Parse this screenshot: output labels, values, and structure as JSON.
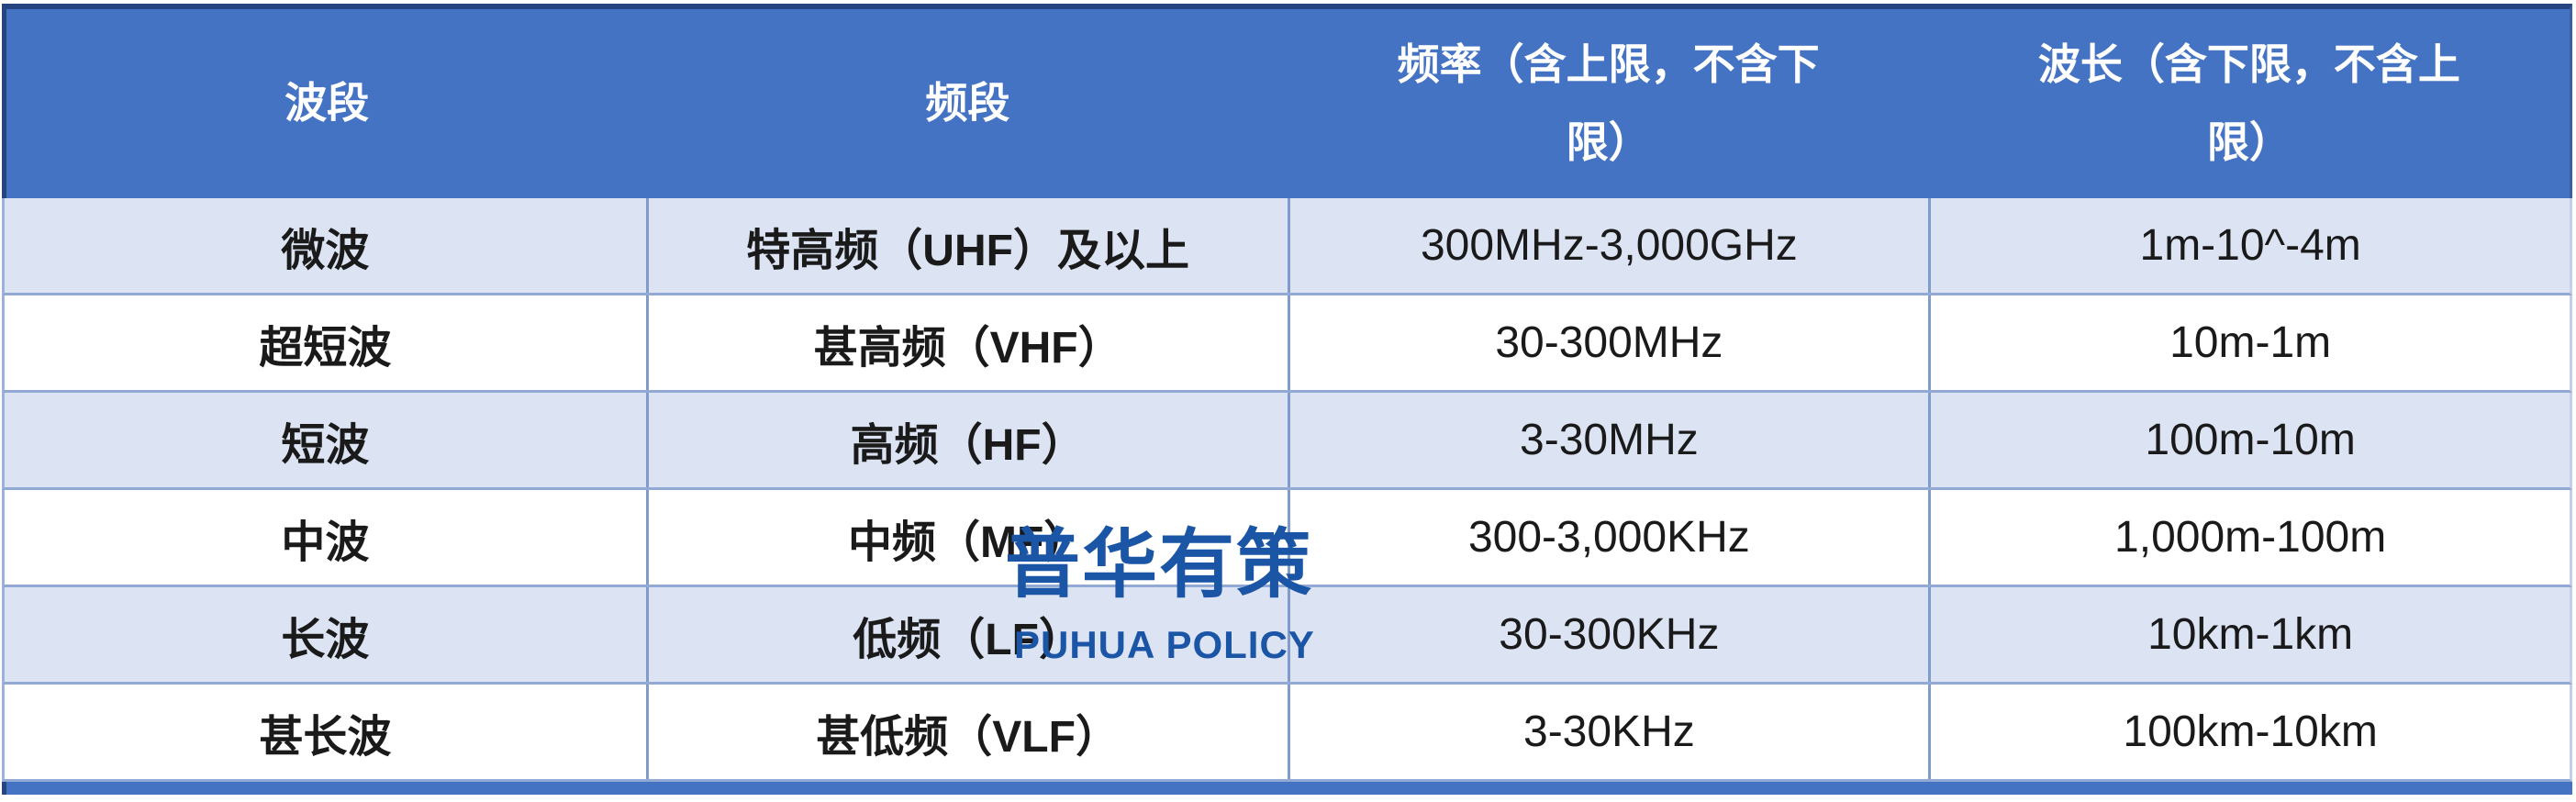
{
  "table": {
    "columns": [
      {
        "label": "波段"
      },
      {
        "label": "频段"
      },
      {
        "label": "频率（含上限，不含下\n限）"
      },
      {
        "label": "波长（含下限，不含上\n限）"
      }
    ],
    "rows": [
      {
        "band": "微波",
        "freq_band": "特高频（UHF）及以上",
        "freq_range": "300MHz-3,000GHz",
        "wavelength": "1m-10^-4m"
      },
      {
        "band": "超短波",
        "freq_band": "甚高频（VHF）",
        "freq_range": "30-300MHz",
        "wavelength": "10m-1m"
      },
      {
        "band": "短波",
        "freq_band": "高频（HF）",
        "freq_range": "3-30MHz",
        "wavelength": "100m-10m"
      },
      {
        "band": "中波",
        "freq_band": "中频（MF）",
        "freq_range": "300-3,000KHz",
        "wavelength": "1,000m-100m"
      },
      {
        "band": "长波",
        "freq_band": "低频（LF）",
        "freq_range": "30-300KHz",
        "wavelength": "10km-1km"
      },
      {
        "band": "甚长波",
        "freq_band": "甚低频（VLF）",
        "freq_range": "3-30KHz",
        "wavelength": "100km-10km"
      }
    ]
  },
  "watermark": {
    "cn": "普华有策",
    "en": "PUHUA POLICY"
  },
  "colors": {
    "header_bg": "#4573C4",
    "header_text": "#FFFFFF",
    "header_border": "#26447F",
    "row_alt_bg": "#DCE4F4",
    "row_bg": "#FFFFFF",
    "divider": "#8FA8D8",
    "body_text": "#1A1A1A",
    "watermark": "#1B55A6"
  }
}
